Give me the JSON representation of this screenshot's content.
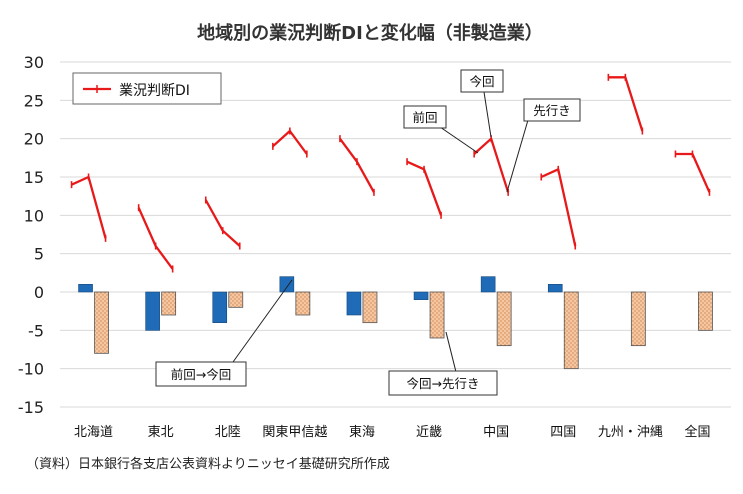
{
  "chart_data": {
    "type": "bar",
    "title": "地域別の業況判断DIと変化幅（非製造業）",
    "categories": [
      "北海道",
      "東北",
      "北陸",
      "関東甲信越",
      "東海",
      "近畿",
      "中国",
      "四国",
      "九州・沖縄",
      "全国"
    ],
    "ylim": [
      -15,
      30
    ],
    "yticks": [
      -15,
      -10,
      -5,
      0,
      5,
      10,
      15,
      20,
      25,
      30
    ],
    "grid": true,
    "legend": {
      "position": "top-left",
      "line_label": "業況判断DI"
    },
    "series": [
      {
        "key": "change_prev",
        "values": [
          1,
          -5,
          -4,
          2,
          -3,
          -1,
          2,
          1,
          0,
          0
        ],
        "color": "#1F6BB8"
      },
      {
        "key": "change_next",
        "values": [
          -8,
          -3,
          -2,
          -3,
          -4,
          -6,
          -7,
          -10,
          -7,
          -5
        ],
        "color": "#F5C6A0"
      },
      {
        "key": "di_line",
        "name": "業況判断DI",
        "color": "#E8191A",
        "points": [
          [
            14,
            15,
            7
          ],
          [
            11,
            6,
            3
          ],
          [
            12,
            8,
            6
          ],
          [
            19,
            21,
            18
          ],
          [
            20,
            17,
            13
          ],
          [
            17,
            16,
            10
          ],
          [
            18,
            20,
            13
          ],
          [
            15,
            16,
            6
          ],
          [
            28,
            28,
            21
          ],
          [
            18,
            18,
            13
          ]
        ]
      }
    ],
    "annotations": [
      "前回",
      "今回",
      "先行き",
      "前回→今回",
      "今回→先行き"
    ],
    "source": "（資料）日本銀行各支店公表資料よりニッセイ基礎研究所作成"
  }
}
